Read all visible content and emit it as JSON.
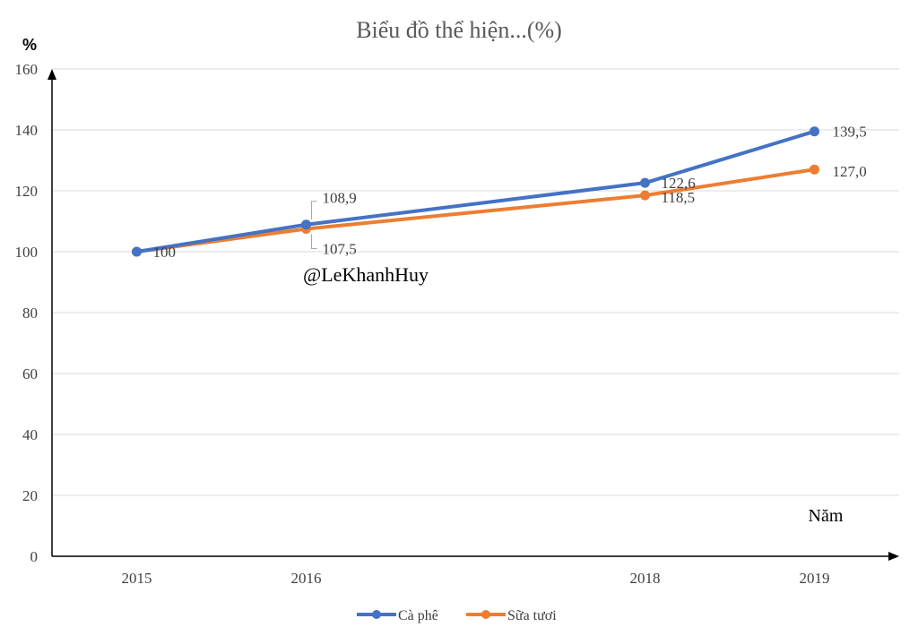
{
  "chart_data": {
    "type": "line",
    "title": "Biểu đồ thể hiện...(%)",
    "ylabel": "%",
    "xlabel": "Năm",
    "watermark": "@LeKhanhHuy",
    "x": [
      2015,
      2016,
      2018,
      2019
    ],
    "x_tick_labels": [
      "2015",
      "2016",
      "2018",
      "2019"
    ],
    "ylim": [
      0,
      160
    ],
    "y_ticks": [
      0,
      20,
      40,
      60,
      80,
      100,
      120,
      140,
      160
    ],
    "y_tick_labels": [
      "0",
      "20",
      "40",
      "60",
      "80",
      "100",
      "120",
      "140",
      "160"
    ],
    "grid": true,
    "legend_position": "bottom",
    "series": [
      {
        "name": "Cà phê",
        "color": "#4472C4",
        "values": [
          100,
          108.9,
          122.6,
          139.5
        ],
        "labels": [
          "100",
          "108,9",
          "122,6",
          "139,5"
        ]
      },
      {
        "name": "Sữa tươi",
        "color": "#ED7D31",
        "values": [
          100,
          107.5,
          118.5,
          127.0
        ],
        "labels": [
          "",
          "107,5",
          "118,5",
          "127,0"
        ]
      }
    ]
  }
}
